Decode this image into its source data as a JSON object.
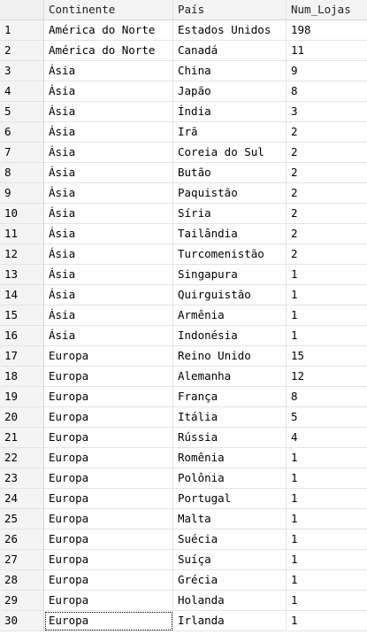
{
  "columns": {
    "continente": "Continente",
    "pais": "País",
    "num_lojas": "Num_Lojas"
  },
  "rows": [
    {
      "n": "1",
      "continente": "América do Norte",
      "pais": "Estados Unidos",
      "num_lojas": "198"
    },
    {
      "n": "2",
      "continente": "América do Norte",
      "pais": "Canadá",
      "num_lojas": "11"
    },
    {
      "n": "3",
      "continente": "Ásia",
      "pais": "China",
      "num_lojas": "9"
    },
    {
      "n": "4",
      "continente": "Ásia",
      "pais": "Japão",
      "num_lojas": "8"
    },
    {
      "n": "5",
      "continente": "Ásia",
      "pais": "Índia",
      "num_lojas": "3"
    },
    {
      "n": "6",
      "continente": "Ásia",
      "pais": "Irã",
      "num_lojas": "2"
    },
    {
      "n": "7",
      "continente": "Ásia",
      "pais": "Coreia do Sul",
      "num_lojas": "2"
    },
    {
      "n": "8",
      "continente": "Ásia",
      "pais": "Butão",
      "num_lojas": "2"
    },
    {
      "n": "9",
      "continente": "Ásia",
      "pais": "Paquistão",
      "num_lojas": "2"
    },
    {
      "n": "10",
      "continente": "Ásia",
      "pais": "Síria",
      "num_lojas": "2"
    },
    {
      "n": "11",
      "continente": "Ásia",
      "pais": "Tailândia",
      "num_lojas": "2"
    },
    {
      "n": "12",
      "continente": "Ásia",
      "pais": "Turcomenistão",
      "num_lojas": "2"
    },
    {
      "n": "13",
      "continente": "Ásia",
      "pais": "Singapura",
      "num_lojas": "1"
    },
    {
      "n": "14",
      "continente": "Ásia",
      "pais": "Quirguistão",
      "num_lojas": "1"
    },
    {
      "n": "15",
      "continente": "Ásia",
      "pais": "Armênia",
      "num_lojas": "1"
    },
    {
      "n": "16",
      "continente": "Ásia",
      "pais": "Indonésia",
      "num_lojas": "1"
    },
    {
      "n": "17",
      "continente": "Europa",
      "pais": "Reino Unido",
      "num_lojas": "15"
    },
    {
      "n": "18",
      "continente": "Europa",
      "pais": "Alemanha",
      "num_lojas": "12"
    },
    {
      "n": "19",
      "continente": "Europa",
      "pais": "França",
      "num_lojas": "8"
    },
    {
      "n": "20",
      "continente": "Europa",
      "pais": "Itália",
      "num_lojas": "5"
    },
    {
      "n": "21",
      "continente": "Europa",
      "pais": "Rússia",
      "num_lojas": "4"
    },
    {
      "n": "22",
      "continente": "Europa",
      "pais": "Romênia",
      "num_lojas": "1"
    },
    {
      "n": "23",
      "continente": "Europa",
      "pais": "Polônia",
      "num_lojas": "1"
    },
    {
      "n": "24",
      "continente": "Europa",
      "pais": "Portugal",
      "num_lojas": "1"
    },
    {
      "n": "25",
      "continente": "Europa",
      "pais": "Malta",
      "num_lojas": "1"
    },
    {
      "n": "26",
      "continente": "Europa",
      "pais": "Suécia",
      "num_lojas": "1"
    },
    {
      "n": "27",
      "continente": "Europa",
      "pais": "Suíça",
      "num_lojas": "1"
    },
    {
      "n": "28",
      "continente": "Europa",
      "pais": "Grécia",
      "num_lojas": "1"
    },
    {
      "n": "29",
      "continente": "Europa",
      "pais": "Holanda",
      "num_lojas": "1"
    },
    {
      "n": "30",
      "continente": "Europa",
      "pais": "Irlanda",
      "num_lojas": "1"
    }
  ],
  "selected_cell": {
    "row": "30",
    "column": "continente"
  }
}
